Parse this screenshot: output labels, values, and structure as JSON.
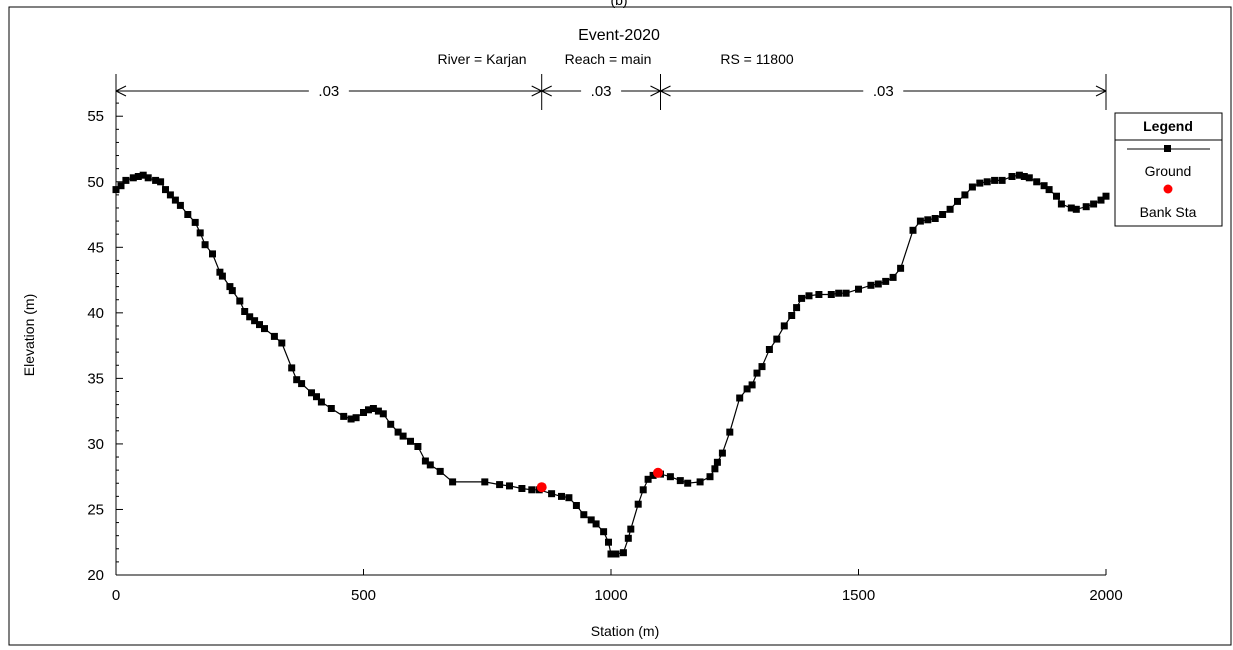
{
  "figure_label": "(b)",
  "chart_data": {
    "type": "line",
    "title": "Event-2020",
    "subtitle": {
      "river": "River = Karjan",
      "reach": "Reach = main",
      "rs": "RS = 11800"
    },
    "xlabel": "Station (m)",
    "ylabel": "Elevation  (m)",
    "xlim": [
      0,
      2000
    ],
    "ylim": [
      20,
      57
    ],
    "x_ticks": [
      0,
      500,
      1000,
      1500,
      2000
    ],
    "y_ticks": [
      20,
      25,
      30,
      35,
      40,
      45,
      50,
      55
    ],
    "grid": false,
    "legend": {
      "title": "Legend",
      "position": "right",
      "entries": [
        "Ground",
        "Bank Sta"
      ]
    },
    "mannings_n": [
      {
        "from": 0,
        "to": 860,
        "label": ".03"
      },
      {
        "from": 860,
        "to": 1100,
        "label": ".03"
      },
      {
        "from": 1100,
        "to": 2000,
        "label": ".03"
      }
    ],
    "colors": {
      "ground": "#000000",
      "bank_sta": "#ff0000"
    },
    "series": [
      {
        "name": "Ground",
        "points": [
          [
            0,
            49.4
          ],
          [
            10,
            49.7
          ],
          [
            20,
            50.1
          ],
          [
            35,
            50.3
          ],
          [
            45,
            50.4
          ],
          [
            55,
            50.5
          ],
          [
            65,
            50.3
          ],
          [
            80,
            50.1
          ],
          [
            90,
            50.0
          ],
          [
            100,
            49.4
          ],
          [
            110,
            49.0
          ],
          [
            120,
            48.6
          ],
          [
            130,
            48.2
          ],
          [
            145,
            47.5
          ],
          [
            160,
            46.9
          ],
          [
            170,
            46.1
          ],
          [
            180,
            45.2
          ],
          [
            195,
            44.5
          ],
          [
            210,
            43.1
          ],
          [
            215,
            42.8
          ],
          [
            230,
            42.0
          ],
          [
            235,
            41.7
          ],
          [
            250,
            40.9
          ],
          [
            260,
            40.1
          ],
          [
            270,
            39.7
          ],
          [
            280,
            39.4
          ],
          [
            290,
            39.1
          ],
          [
            300,
            38.8
          ],
          [
            320,
            38.2
          ],
          [
            335,
            37.7
          ],
          [
            355,
            35.8
          ],
          [
            365,
            34.9
          ],
          [
            375,
            34.6
          ],
          [
            395,
            33.9
          ],
          [
            405,
            33.6
          ],
          [
            415,
            33.2
          ],
          [
            435,
            32.7
          ],
          [
            460,
            32.1
          ],
          [
            475,
            31.9
          ],
          [
            485,
            32.0
          ],
          [
            500,
            32.4
          ],
          [
            510,
            32.6
          ],
          [
            520,
            32.7
          ],
          [
            530,
            32.5
          ],
          [
            540,
            32.3
          ],
          [
            555,
            31.5
          ],
          [
            570,
            30.9
          ],
          [
            580,
            30.6
          ],
          [
            595,
            30.2
          ],
          [
            610,
            29.8
          ],
          [
            625,
            28.7
          ],
          [
            635,
            28.4
          ],
          [
            655,
            27.9
          ],
          [
            680,
            27.1
          ],
          [
            745,
            27.1
          ],
          [
            775,
            26.9
          ],
          [
            795,
            26.8
          ],
          [
            820,
            26.6
          ],
          [
            840,
            26.5
          ],
          [
            855,
            26.5
          ],
          [
            880,
            26.2
          ],
          [
            900,
            26.0
          ],
          [
            915,
            25.9
          ],
          [
            930,
            25.3
          ],
          [
            945,
            24.6
          ],
          [
            960,
            24.2
          ],
          [
            970,
            23.9
          ],
          [
            985,
            23.3
          ],
          [
            995,
            22.5
          ],
          [
            1000,
            21.6
          ],
          [
            1010,
            21.6
          ],
          [
            1025,
            21.7
          ],
          [
            1035,
            22.8
          ],
          [
            1040,
            23.5
          ],
          [
            1055,
            25.4
          ],
          [
            1065,
            26.5
          ],
          [
            1075,
            27.3
          ],
          [
            1085,
            27.6
          ],
          [
            1100,
            27.7
          ],
          [
            1120,
            27.5
          ],
          [
            1140,
            27.2
          ],
          [
            1155,
            27.0
          ],
          [
            1180,
            27.1
          ],
          [
            1200,
            27.5
          ],
          [
            1210,
            28.1
          ],
          [
            1215,
            28.6
          ],
          [
            1225,
            29.3
          ],
          [
            1240,
            30.9
          ],
          [
            1260,
            33.5
          ],
          [
            1275,
            34.2
          ],
          [
            1285,
            34.5
          ],
          [
            1295,
            35.4
          ],
          [
            1305,
            35.9
          ],
          [
            1320,
            37.2
          ],
          [
            1335,
            38.0
          ],
          [
            1350,
            39.0
          ],
          [
            1365,
            39.8
          ],
          [
            1375,
            40.4
          ],
          [
            1385,
            41.1
          ],
          [
            1400,
            41.3
          ],
          [
            1420,
            41.4
          ],
          [
            1445,
            41.4
          ],
          [
            1460,
            41.5
          ],
          [
            1475,
            41.5
          ],
          [
            1500,
            41.8
          ],
          [
            1525,
            42.1
          ],
          [
            1540,
            42.2
          ],
          [
            1555,
            42.4
          ],
          [
            1570,
            42.7
          ],
          [
            1585,
            43.4
          ],
          [
            1610,
            46.3
          ],
          [
            1625,
            47.0
          ],
          [
            1640,
            47.1
          ],
          [
            1655,
            47.2
          ],
          [
            1670,
            47.5
          ],
          [
            1685,
            47.9
          ],
          [
            1700,
            48.5
          ],
          [
            1715,
            49.0
          ],
          [
            1730,
            49.6
          ],
          [
            1745,
            49.9
          ],
          [
            1760,
            50.0
          ],
          [
            1775,
            50.1
          ],
          [
            1790,
            50.1
          ],
          [
            1810,
            50.4
          ],
          [
            1825,
            50.5
          ],
          [
            1835,
            50.4
          ],
          [
            1845,
            50.3
          ],
          [
            1860,
            50.0
          ],
          [
            1875,
            49.7
          ],
          [
            1885,
            49.4
          ],
          [
            1900,
            48.9
          ],
          [
            1910,
            48.3
          ],
          [
            1930,
            48.0
          ],
          [
            1940,
            47.9
          ],
          [
            1960,
            48.1
          ],
          [
            1975,
            48.3
          ],
          [
            1990,
            48.6
          ],
          [
            2000,
            48.9
          ]
        ]
      },
      {
        "name": "Bank Sta",
        "points": [
          [
            860,
            26.7
          ],
          [
            1095,
            27.8
          ]
        ]
      }
    ]
  }
}
